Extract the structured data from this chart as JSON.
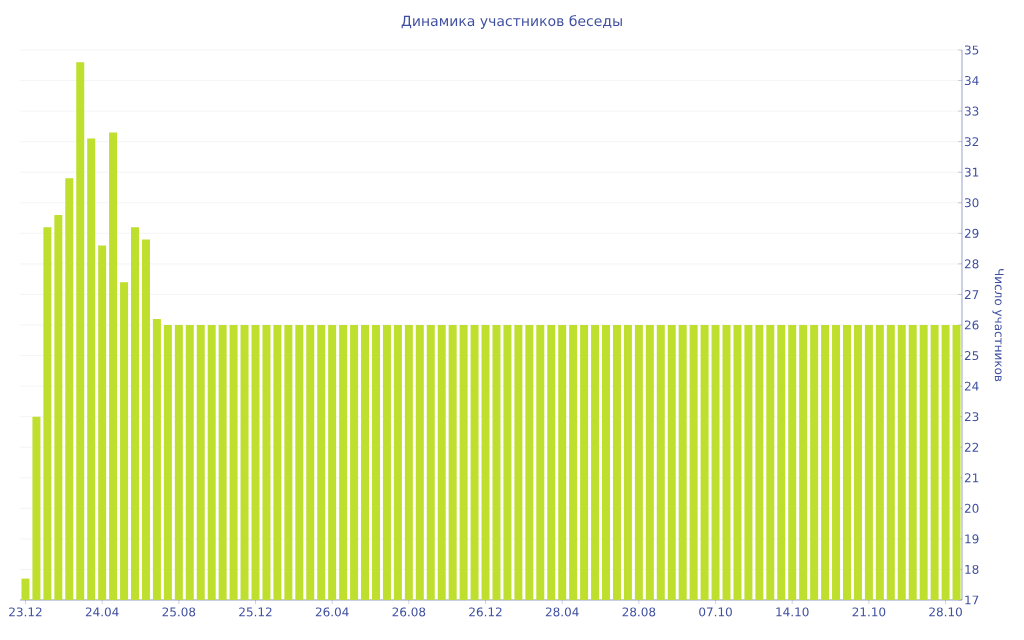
{
  "chart_data": {
    "type": "bar",
    "title": "Динамика участников беседы",
    "ylabel": "Число участников",
    "categories": [
      "23.12",
      null,
      null,
      null,
      null,
      null,
      null,
      "24.04",
      null,
      null,
      null,
      null,
      null,
      null,
      "25.08",
      null,
      null,
      null,
      null,
      null,
      null,
      "25.12",
      null,
      null,
      null,
      null,
      null,
      null,
      "26.04",
      null,
      null,
      null,
      null,
      null,
      null,
      "26.08",
      null,
      null,
      null,
      null,
      null,
      null,
      "26.12",
      null,
      null,
      null,
      null,
      null,
      null,
      "28.04",
      null,
      null,
      null,
      null,
      null,
      null,
      "28.08",
      null,
      null,
      null,
      null,
      null,
      null,
      "07.10",
      null,
      null,
      null,
      null,
      null,
      null,
      "14.10",
      null,
      null,
      null,
      null,
      null,
      null,
      "21.10",
      null,
      null,
      null,
      null,
      null,
      null,
      "28.10",
      null
    ],
    "values": [
      17.7,
      23.0,
      29.2,
      29.6,
      30.8,
      34.6,
      32.1,
      28.6,
      32.3,
      27.4,
      29.2,
      28.8,
      26.2,
      26,
      26,
      26,
      26,
      26,
      26,
      26,
      26,
      26,
      26,
      26,
      26,
      26,
      26,
      26,
      26,
      26,
      26,
      26,
      26,
      26,
      26,
      26,
      26,
      26,
      26,
      26,
      26,
      26,
      26,
      26,
      26,
      26,
      26,
      26,
      26,
      26,
      26,
      26,
      26,
      26,
      26,
      26,
      26,
      26,
      26,
      26,
      26,
      26,
      26,
      26,
      26,
      26,
      26,
      26,
      26,
      26,
      26,
      26,
      26,
      26,
      26,
      26,
      26,
      26,
      26,
      26,
      26,
      26,
      26,
      26,
      26,
      26
    ],
    "color": "#bedf2e",
    "ylim": [
      17,
      35
    ],
    "yticks": [
      17,
      18,
      19,
      20,
      21,
      22,
      23,
      24,
      25,
      26,
      27,
      28,
      29,
      30,
      31,
      32,
      33,
      34,
      35
    ],
    "grid": "y"
  }
}
